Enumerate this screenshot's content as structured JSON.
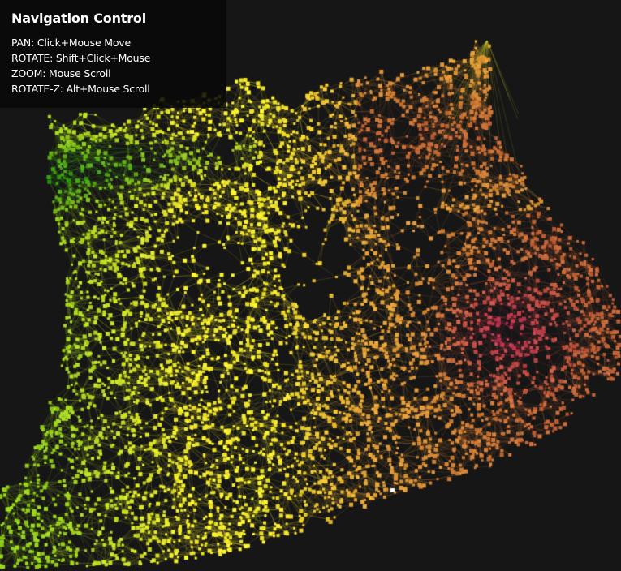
{
  "nav_panel": {
    "title": "Navigation Control",
    "controls": [
      {
        "action": "PAN",
        "binding": "Click+Mouse Move"
      },
      {
        "action": "ROTATE",
        "binding": "Shift+Click+Mouse"
      },
      {
        "action": "ZOOM",
        "binding": "Mouse Scroll"
      },
      {
        "action": "ROTATE-Z",
        "binding": "Alt+Mouse Scroll"
      }
    ]
  },
  "colors": {
    "background": "#161616",
    "panel": "#080808",
    "node_palette": [
      "#2a9a10",
      "#8fcf20",
      "#f4ec2a",
      "#e8a838",
      "#c06038",
      "#c03058"
    ],
    "edge": "#7a7a20"
  },
  "graph": {
    "view": "3d force-directed network",
    "selected_nodes_color": "#ffffff"
  }
}
